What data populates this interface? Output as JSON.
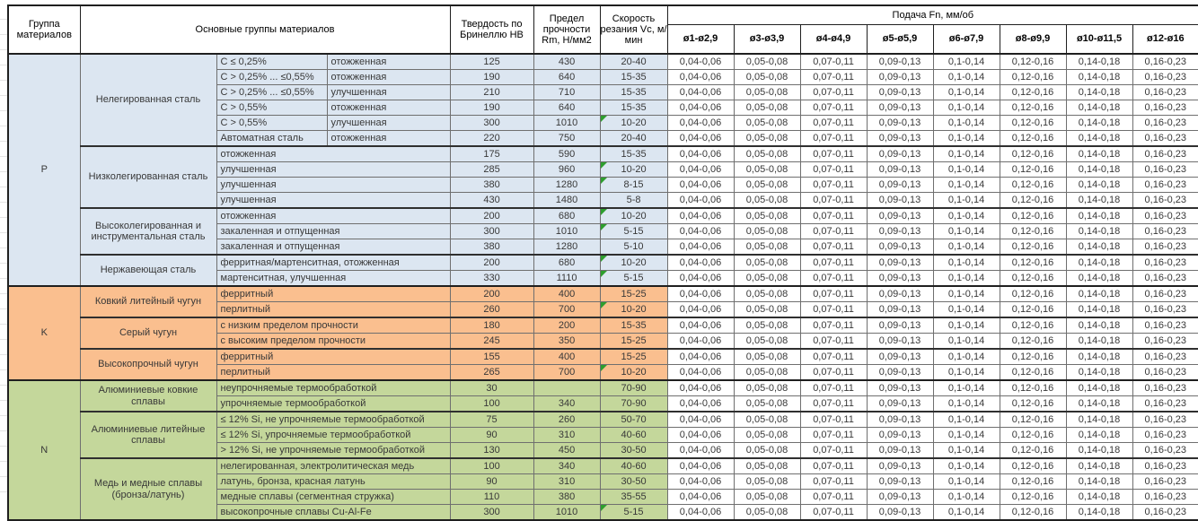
{
  "header": {
    "group": "Группа материалов",
    "material_groups": "Основные группы материалов",
    "hardness": "Твердость по Бринеллю HB",
    "strength": "Предел прочности Rm, Н/мм2",
    "speed": "Скорость резания Vc, м/мин",
    "feed": "Подача Fn, мм/об",
    "feed_columns": [
      "ø1-ø2,9",
      "ø3-ø3,9",
      "ø4-ø4,9",
      "ø5-ø5,9",
      "ø6-ø7,9",
      "ø8-ø9,9",
      "ø10-ø11,5",
      "ø12-ø16"
    ]
  },
  "feed_values": [
    "0,04-0,06",
    "0,05-0,08",
    "0,07-0,11",
    "0,09-0,13",
    "0,1-0,14",
    "0,12-0,16",
    "0,14-0,18",
    "0,16-0,23"
  ],
  "colors": {
    "group_p": "#dce6f1",
    "group_k": "#fabf8f",
    "group_n": "#c4d79b",
    "marker_green": "#2e9e2e"
  },
  "groups": [
    {
      "code": "P",
      "color_key": "group_p",
      "subgroups": [
        {
          "name": "Нелегированная сталь",
          "rows": [
            {
              "cond": "C ≤ 0,25%",
              "state": "отожженная",
              "hb": "125",
              "rm": "430",
              "vc": "20-40",
              "mark": false
            },
            {
              "cond": "C > 0,25% ... ≤0,55%",
              "state": "отожженная",
              "hb": "190",
              "rm": "640",
              "vc": "15-35",
              "mark": false
            },
            {
              "cond": "C > 0,25% ... ≤0,55%",
              "state": "улучшенная",
              "hb": "210",
              "rm": "710",
              "vc": "15-35",
              "mark": false
            },
            {
              "cond": "C > 0,55%",
              "state": "отожженная",
              "hb": "190",
              "rm": "640",
              "vc": "15-35",
              "mark": false
            },
            {
              "cond": "C > 0,55%",
              "state": "улучшенная",
              "hb": "300",
              "rm": "1010",
              "vc": "10-20",
              "mark": true
            },
            {
              "cond": "Автоматная сталь",
              "state": "отожженная",
              "hb": "220",
              "rm": "750",
              "vc": "20-40",
              "mark": false
            }
          ]
        },
        {
          "name": "Низколегированная сталь",
          "rows": [
            {
              "desc": "отожженная",
              "hb": "175",
              "rm": "590",
              "vc": "15-35",
              "mark": false
            },
            {
              "desc": "улучшенная",
              "hb": "285",
              "rm": "960",
              "vc": "10-20",
              "mark": true
            },
            {
              "desc": "улучшенная",
              "hb": "380",
              "rm": "1280",
              "vc": "8-15",
              "mark": true
            },
            {
              "desc": "улучшенная",
              "hb": "430",
              "rm": "1480",
              "vc": "5-8",
              "mark": false
            }
          ]
        },
        {
          "name": "Высоколегированная и инструментальная сталь",
          "rows": [
            {
              "desc": "отожженная",
              "hb": "200",
              "rm": "680",
              "vc": "10-20",
              "mark": true
            },
            {
              "desc": "закаленная и отпущенная",
              "hb": "300",
              "rm": "1010",
              "vc": "5-15",
              "mark": true
            },
            {
              "desc": "закаленная и отпущенная",
              "hb": "380",
              "rm": "1280",
              "vc": "5-10",
              "mark": false
            }
          ]
        },
        {
          "name": "Нержавеющая сталь",
          "rows": [
            {
              "desc": "ферритная/мартенситная, отожженная",
              "hb": "200",
              "rm": "680",
              "vc": "10-20",
              "mark": true
            },
            {
              "desc": "мартенситная, улучшенная",
              "hb": "330",
              "rm": "1110",
              "vc": "5-15",
              "mark": true
            }
          ]
        }
      ]
    },
    {
      "code": "K",
      "color_key": "group_k",
      "subgroups": [
        {
          "name": "Ковкий литейный чугун",
          "rows": [
            {
              "desc": "ферритный",
              "hb": "200",
              "rm": "400",
              "vc": "15-25",
              "mark": false
            },
            {
              "desc": "перлитный",
              "hb": "260",
              "rm": "700",
              "vc": "10-20",
              "mark": true
            }
          ]
        },
        {
          "name": "Серый чугун",
          "rows": [
            {
              "desc": "с низким пределом прочности",
              "hb": "180",
              "rm": "200",
              "vc": "15-35",
              "mark": false
            },
            {
              "desc": "с высоким пределом прочности",
              "hb": "245",
              "rm": "350",
              "vc": "15-25",
              "mark": false
            }
          ]
        },
        {
          "name": "Высокопрочный чугун",
          "rows": [
            {
              "desc": "ферритный",
              "hb": "155",
              "rm": "400",
              "vc": "15-25",
              "mark": false
            },
            {
              "desc": "перлитный",
              "hb": "265",
              "rm": "700",
              "vc": "10-20",
              "mark": true
            }
          ]
        }
      ]
    },
    {
      "code": "N",
      "color_key": "group_n",
      "subgroups": [
        {
          "name": "Алюминиевые ковкие сплавы",
          "rows": [
            {
              "desc": "неупрочняемые термообработкой",
              "hb": "30",
              "rm": "",
              "vc": "70-90",
              "mark": false
            },
            {
              "desc": "упрочняемые термообработкой",
              "hb": "100",
              "rm": "340",
              "vc": "70-90",
              "mark": false
            }
          ]
        },
        {
          "name": "Алюминиевые литейные сплавы",
          "rows": [
            {
              "desc": "≤ 12% Si, не упрочняемые термообработкой",
              "hb": "75",
              "rm": "260",
              "vc": "50-70",
              "mark": false
            },
            {
              "desc": "≤ 12% Si, упрочняемые термообработкой",
              "hb": "90",
              "rm": "310",
              "vc": "40-60",
              "mark": false
            },
            {
              "desc": "> 12% Si, не упрочняемые термообработкой",
              "hb": "130",
              "rm": "450",
              "vc": "30-50",
              "mark": false
            }
          ]
        },
        {
          "name": "Медь и медные сплавы (бронза/латунь)",
          "rows": [
            {
              "desc": "нелегированная, электролитическая медь",
              "hb": "100",
              "rm": "340",
              "vc": "40-60",
              "mark": false
            },
            {
              "desc": "латунь, бронза, красная латунь",
              "hb": "90",
              "rm": "310",
              "vc": "30-50",
              "mark": false
            },
            {
              "desc": "медные сплавы (сегментная стружка)",
              "hb": "110",
              "rm": "380",
              "vc": "35-55",
              "mark": false
            },
            {
              "desc": "высокопрочные сплавы Cu-Al-Fe",
              "hb": "300",
              "rm": "1010",
              "vc": "5-15",
              "mark": true
            }
          ]
        }
      ]
    }
  ]
}
